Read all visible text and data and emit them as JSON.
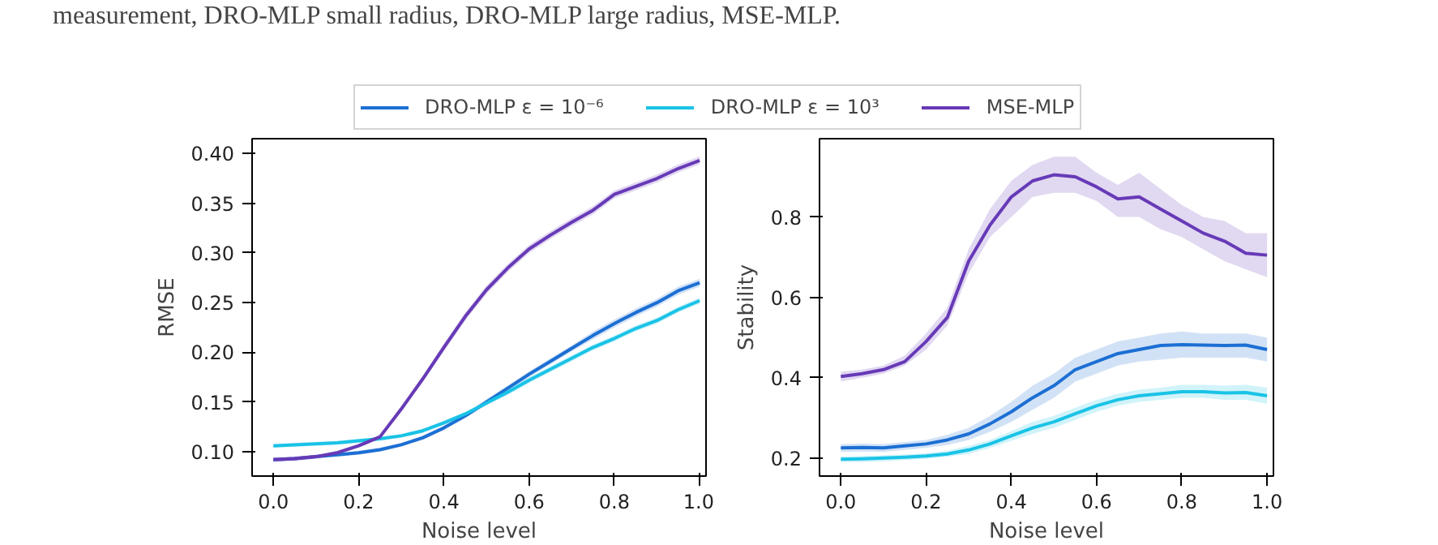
{
  "chart_data": [
    {
      "type": "line",
      "xlabel": "Noise level",
      "ylabel": "RMSE",
      "legend": "top",
      "annotations": [
        "measurement, DRO-MLP small radius, DRO-MLP large radius, MSE-MLP."
      ],
      "x": [
        0,
        0.05,
        0.1,
        0.15,
        0.2,
        0.25,
        0.3,
        0.35,
        0.4,
        0.45,
        0.5,
        0.55,
        0.6,
        0.65,
        0.7,
        0.75,
        0.8,
        0.85,
        0.9,
        0.95,
        1.0
      ],
      "xlim": [
        -0.05,
        1.015
      ],
      "ylim": [
        0.0755,
        0.415
      ],
      "xticks": [
        {
          "value": 0,
          "label": "0.0"
        },
        {
          "value": 0.2,
          "label": "0.2"
        },
        {
          "value": 0.4,
          "label": "0.4"
        },
        {
          "value": 0.6,
          "label": "0.6"
        },
        {
          "value": 0.8,
          "label": "0.8"
        },
        {
          "value": 1,
          "label": "1.0"
        }
      ],
      "yticks": [
        {
          "value": 0.1,
          "label": "0.10"
        },
        {
          "value": 0.15,
          "label": "0.15"
        },
        {
          "value": 0.2,
          "label": "0.20"
        },
        {
          "value": 0.25,
          "label": "0.25"
        },
        {
          "value": 0.3,
          "label": "0.30"
        },
        {
          "value": 0.35,
          "label": "0.35"
        },
        {
          "value": 0.4,
          "label": "0.40"
        }
      ],
      "series": [
        {
          "name": "DRO-MLP ε = 10⁻⁶",
          "color": "#1c6fd3",
          "values": [
            0.092,
            0.093,
            0.095,
            0.097,
            0.099,
            0.102,
            0.107,
            0.114,
            0.124,
            0.136,
            0.15,
            0.164,
            0.178,
            0.191,
            0.204,
            0.217,
            0.229,
            0.24,
            0.25,
            0.262,
            0.27
          ],
          "lower": [
            0.09,
            0.091,
            0.093,
            0.095,
            0.097,
            0.1,
            0.105,
            0.112,
            0.122,
            0.134,
            0.147,
            0.161,
            0.175,
            0.188,
            0.201,
            0.213,
            0.225,
            0.236,
            0.246,
            0.258,
            0.266
          ],
          "upper": [
            0.094,
            0.095,
            0.097,
            0.099,
            0.101,
            0.104,
            0.109,
            0.116,
            0.126,
            0.138,
            0.153,
            0.167,
            0.181,
            0.194,
            0.207,
            0.221,
            0.233,
            0.244,
            0.254,
            0.266,
            0.274
          ]
        },
        {
          "name": "DRO-MLP ε = 10³",
          "color": "#19c3e6",
          "values": [
            0.106,
            0.107,
            0.108,
            0.109,
            0.111,
            0.113,
            0.116,
            0.121,
            0.129,
            0.138,
            0.149,
            0.16,
            0.172,
            0.183,
            0.194,
            0.205,
            0.214,
            0.224,
            0.232,
            0.243,
            0.252
          ],
          "lower": [
            0.104,
            0.105,
            0.106,
            0.107,
            0.109,
            0.111,
            0.114,
            0.119,
            0.127,
            0.136,
            0.147,
            0.157,
            0.169,
            0.18,
            0.191,
            0.202,
            0.211,
            0.221,
            0.229,
            0.24,
            0.249
          ],
          "upper": [
            0.108,
            0.109,
            0.11,
            0.111,
            0.113,
            0.115,
            0.118,
            0.123,
            0.131,
            0.14,
            0.151,
            0.163,
            0.175,
            0.186,
            0.197,
            0.208,
            0.217,
            0.227,
            0.235,
            0.246,
            0.255
          ]
        },
        {
          "name": "MSE-MLP",
          "color": "#673ab7",
          "values": [
            0.092,
            0.093,
            0.095,
            0.099,
            0.106,
            0.115,
            0.143,
            0.173,
            0.205,
            0.236,
            0.263,
            0.285,
            0.304,
            0.318,
            0.331,
            0.343,
            0.359,
            0.367,
            0.375,
            0.385,
            0.393
          ],
          "lower": [
            0.09,
            0.091,
            0.093,
            0.097,
            0.104,
            0.113,
            0.14,
            0.17,
            0.201,
            0.232,
            0.259,
            0.281,
            0.3,
            0.314,
            0.327,
            0.339,
            0.355,
            0.363,
            0.371,
            0.381,
            0.389
          ],
          "upper": [
            0.094,
            0.095,
            0.097,
            0.101,
            0.108,
            0.117,
            0.146,
            0.176,
            0.209,
            0.24,
            0.267,
            0.289,
            0.308,
            0.322,
            0.335,
            0.347,
            0.363,
            0.371,
            0.379,
            0.389,
            0.397
          ]
        }
      ]
    },
    {
      "type": "line",
      "xlabel": "Noise level",
      "ylabel": "Stability",
      "x": [
        0,
        0.05,
        0.1,
        0.15,
        0.2,
        0.25,
        0.3,
        0.35,
        0.4,
        0.45,
        0.5,
        0.55,
        0.6,
        0.65,
        0.7,
        0.75,
        0.8,
        0.85,
        0.9,
        0.95,
        1.0
      ],
      "xlim": [
        -0.05,
        1.015
      ],
      "ylim": [
        0.155,
        0.995
      ],
      "xticks": [
        {
          "value": 0,
          "label": "0.0"
        },
        {
          "value": 0.2,
          "label": "0.2"
        },
        {
          "value": 0.4,
          "label": "0.4"
        },
        {
          "value": 0.6,
          "label": "0.6"
        },
        {
          "value": 0.8,
          "label": "0.8"
        },
        {
          "value": 1,
          "label": "1.0"
        }
      ],
      "yticks": [
        0.2,
        0.4,
        0.6,
        0.8
      ],
      "series": [
        {
          "color": "#1c6fd3",
          "values": [
            0.225,
            0.226,
            0.225,
            0.23,
            0.235,
            0.245,
            0.26,
            0.285,
            0.315,
            0.35,
            0.38,
            0.42,
            0.44,
            0.46,
            0.47,
            0.48,
            0.482,
            0.481,
            0.48,
            0.481,
            0.47
          ],
          "lower": [
            0.215,
            0.216,
            0.215,
            0.22,
            0.225,
            0.232,
            0.245,
            0.265,
            0.29,
            0.32,
            0.35,
            0.39,
            0.41,
            0.43,
            0.44,
            0.445,
            0.45,
            0.45,
            0.45,
            0.45,
            0.44
          ],
          "upper": [
            0.235,
            0.236,
            0.235,
            0.24,
            0.245,
            0.258,
            0.275,
            0.305,
            0.34,
            0.38,
            0.41,
            0.45,
            0.47,
            0.49,
            0.5,
            0.51,
            0.515,
            0.51,
            0.51,
            0.51,
            0.5
          ]
        },
        {
          "color": "#19c3e6",
          "values": [
            0.197,
            0.198,
            0.2,
            0.202,
            0.205,
            0.21,
            0.22,
            0.235,
            0.255,
            0.275,
            0.29,
            0.31,
            0.33,
            0.345,
            0.355,
            0.36,
            0.365,
            0.365,
            0.362,
            0.363,
            0.355
          ],
          "lower": [
            0.19,
            0.19,
            0.192,
            0.195,
            0.198,
            0.203,
            0.21,
            0.225,
            0.243,
            0.26,
            0.275,
            0.295,
            0.315,
            0.33,
            0.34,
            0.345,
            0.35,
            0.35,
            0.345,
            0.345,
            0.335
          ],
          "upper": [
            0.204,
            0.205,
            0.207,
            0.209,
            0.212,
            0.218,
            0.23,
            0.245,
            0.267,
            0.29,
            0.305,
            0.325,
            0.345,
            0.36,
            0.37,
            0.375,
            0.382,
            0.382,
            0.38,
            0.382,
            0.375
          ]
        },
        {
          "color": "#673ab7",
          "values": [
            0.403,
            0.41,
            0.42,
            0.44,
            0.49,
            0.55,
            0.69,
            0.78,
            0.85,
            0.89,
            0.905,
            0.9,
            0.875,
            0.845,
            0.85,
            0.82,
            0.79,
            0.76,
            0.74,
            0.71,
            0.705
          ],
          "lower": [
            0.39,
            0.4,
            0.41,
            0.43,
            0.47,
            0.53,
            0.66,
            0.75,
            0.8,
            0.85,
            0.86,
            0.86,
            0.84,
            0.8,
            0.8,
            0.77,
            0.75,
            0.72,
            0.69,
            0.67,
            0.65
          ],
          "upper": [
            0.415,
            0.42,
            0.43,
            0.455,
            0.51,
            0.575,
            0.72,
            0.82,
            0.89,
            0.93,
            0.95,
            0.95,
            0.91,
            0.88,
            0.91,
            0.87,
            0.83,
            0.8,
            0.79,
            0.76,
            0.76
          ]
        }
      ]
    }
  ]
}
